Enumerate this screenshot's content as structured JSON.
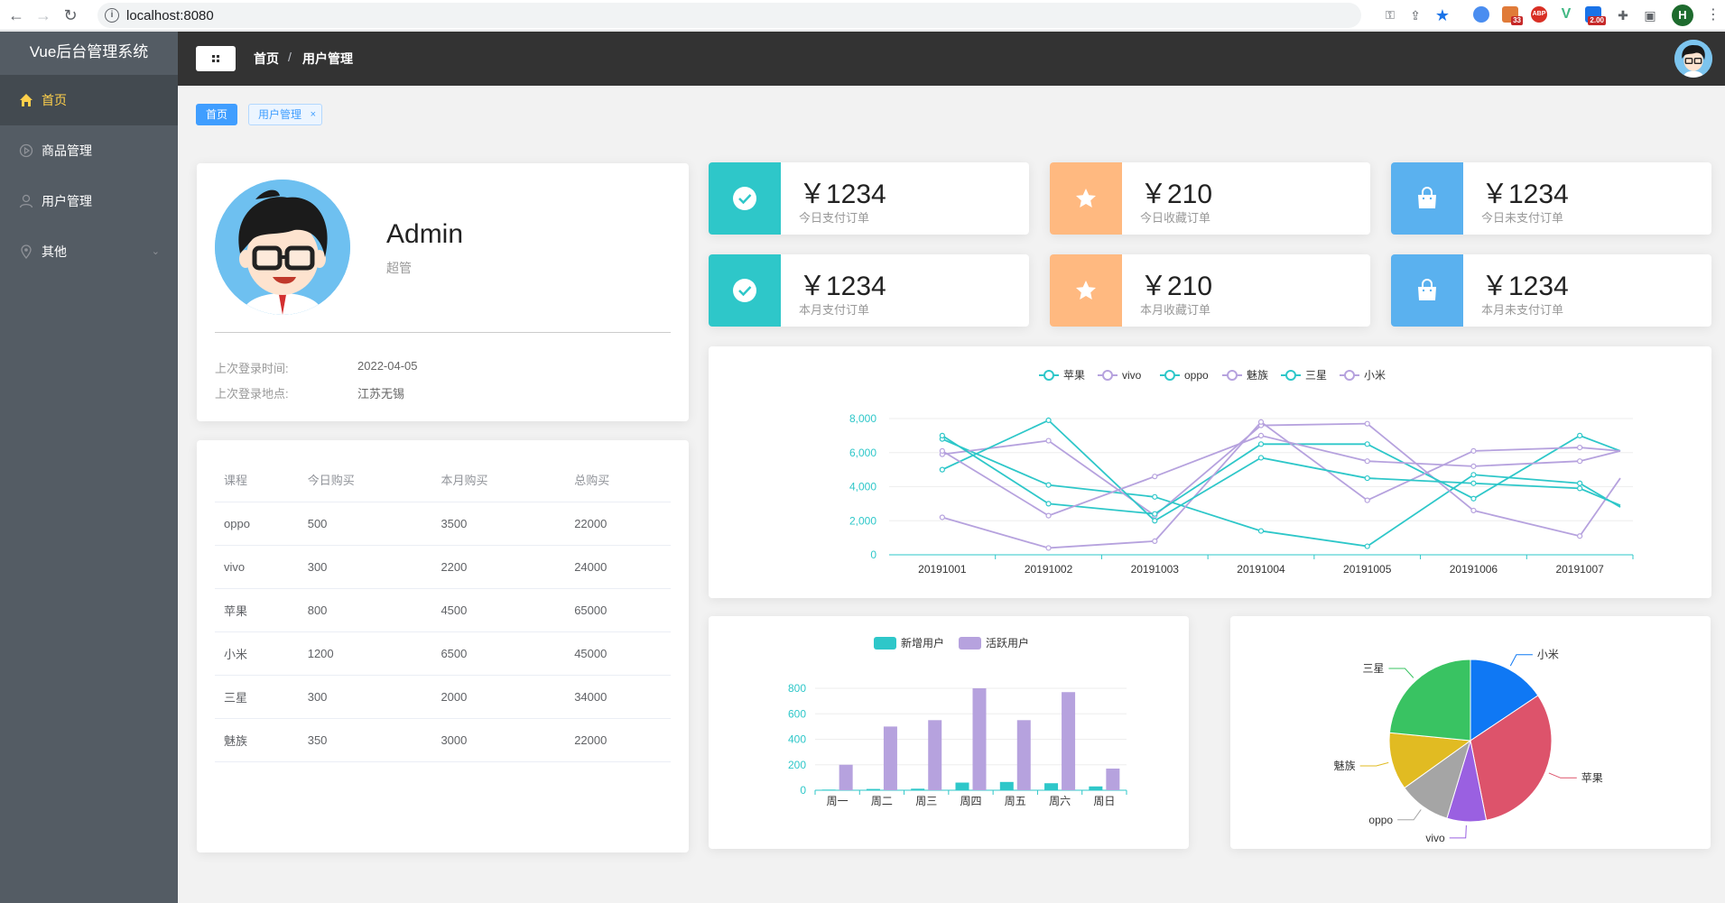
{
  "browser": {
    "url": "localhost:8080",
    "ext_badges": [
      "33",
      "2.00"
    ],
    "profile_initial": "H"
  },
  "sidebar": {
    "title": "Vue后台管理系统",
    "items": [
      {
        "label": "首页",
        "icon": "home-icon"
      },
      {
        "label": "商品管理",
        "icon": "video-play-icon"
      },
      {
        "label": "用户管理",
        "icon": "user-icon"
      },
      {
        "label": "其他",
        "icon": "location-icon"
      }
    ]
  },
  "header": {
    "breadcrumb": [
      "首页",
      "用户管理"
    ],
    "separator": "/"
  },
  "tags": {
    "home": "首页",
    "user": "用户管理",
    "close": "×"
  },
  "user": {
    "name": "Admin",
    "role": "超管",
    "last_login_time_label": "上次登录时间:",
    "last_login_time": "2022-04-05",
    "last_login_place_label": "上次登录地点:",
    "last_login_place": "江苏无锡"
  },
  "table": {
    "headers": [
      "课程",
      "今日购买",
      "本月购买",
      "总购买"
    ],
    "rows": [
      [
        "oppo",
        "500",
        "3500",
        "22000"
      ],
      [
        "vivo",
        "300",
        "2200",
        "24000"
      ],
      [
        "苹果",
        "800",
        "4500",
        "65000"
      ],
      [
        "小米",
        "1200",
        "6500",
        "45000"
      ],
      [
        "三星",
        "300",
        "2000",
        "34000"
      ],
      [
        "魅族",
        "350",
        "3000",
        "22000"
      ]
    ]
  },
  "stats": [
    {
      "value": "￥1234",
      "label": "今日支付订单",
      "color": "#2ec7c9",
      "icon": "check-circle-icon"
    },
    {
      "value": "￥210",
      "label": "今日收藏订单",
      "color": "#ffb980",
      "icon": "star-icon"
    },
    {
      "value": "￥1234",
      "label": "今日未支付订单",
      "color": "#5ab1ef",
      "icon": "shopping-bag-icon"
    },
    {
      "value": "￥1234",
      "label": "本月支付订单",
      "color": "#2ec7c9",
      "icon": "check-circle-icon"
    },
    {
      "value": "￥210",
      "label": "本月收藏订单",
      "color": "#ffb980",
      "icon": "star-icon"
    },
    {
      "value": "￥1234",
      "label": "本月未支付订单",
      "color": "#5ab1ef",
      "icon": "shopping-bag-icon"
    }
  ],
  "chart_data": [
    {
      "type": "line",
      "x": [
        "20191001",
        "20191002",
        "20191003",
        "20191004",
        "20191005",
        "20191006",
        "20191007"
      ],
      "ylim": [
        0,
        8000
      ],
      "yticks": [
        "0",
        "2,000",
        "4,000",
        "6,000",
        "8,000"
      ],
      "legend_position": "top-center",
      "series": [
        {
          "name": "苹果",
          "color": "#2ec7c9",
          "values": [
            6800,
            4100,
            3400,
            1400,
            500,
            4700,
            4200
          ]
        },
        {
          "name": "vivo",
          "color": "#b6a2de",
          "values": [
            5900,
            6700,
            2300,
            7600,
            7700,
            2600,
            1100
          ]
        },
        {
          "name": "oppo",
          "color": "#2ec7c9",
          "values": [
            7000,
            3000,
            2400,
            6500,
            6500,
            3300,
            7000
          ]
        },
        {
          "name": "魅族",
          "color": "#b6a2de",
          "values": [
            2200,
            400,
            800,
            7800,
            3200,
            6100,
            6300
          ]
        },
        {
          "name": "三星",
          "color": "#2ec7c9",
          "values": [
            5000,
            7900,
            2000,
            5700,
            4500,
            4200,
            3900
          ]
        },
        {
          "name": "小米",
          "color": "#b6a2de",
          "values": [
            6100,
            2300,
            4600,
            7000,
            5500,
            5200,
            5500
          ]
        }
      ],
      "tail": [
        2800,
        4500,
        6100,
        6100,
        2900,
        6100
      ]
    },
    {
      "type": "bar",
      "categories": [
        "周一",
        "周二",
        "周三",
        "周四",
        "周五",
        "周六",
        "周日"
      ],
      "ylim": [
        0,
        800
      ],
      "yticks": [
        "0",
        "200",
        "400",
        "600",
        "800"
      ],
      "legend_position": "top-center",
      "series": [
        {
          "name": "新增用户",
          "color": "#2ec7c9",
          "values": [
            5,
            10,
            12,
            60,
            65,
            55,
            30
          ]
        },
        {
          "name": "活跃用户",
          "color": "#b6a2de",
          "values": [
            200,
            500,
            550,
            800,
            550,
            770,
            170
          ]
        }
      ]
    },
    {
      "type": "pie",
      "slices": [
        {
          "name": "小米",
          "value": 2999,
          "color": "#0f78f4"
        },
        {
          "name": "苹果",
          "value": 5999,
          "color": "#dd536b"
        },
        {
          "name": "vivo",
          "value": 1500,
          "color": "#9a60e1"
        },
        {
          "name": "oppo",
          "value": 1999,
          "color": "#a5a5a5"
        },
        {
          "name": "魅族",
          "value": 2200,
          "color": "#e1bb22"
        },
        {
          "name": "三星",
          "value": 4500,
          "color": "#39c362"
        }
      ]
    }
  ]
}
